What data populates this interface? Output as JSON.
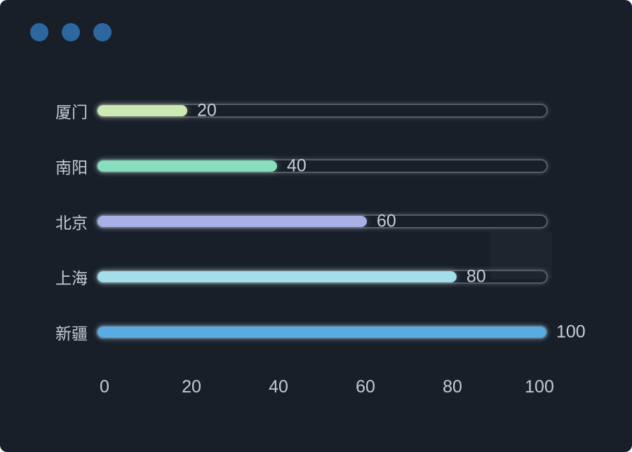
{
  "window": {
    "background": "#191f29",
    "dots_color": "#2d67a0",
    "dot_count": 3
  },
  "chart_data": {
    "type": "bar",
    "orientation": "horizontal",
    "title": "",
    "xlabel": "",
    "ylabel": "",
    "categories": [
      "厦门",
      "南阳",
      "北京",
      "上海",
      "新疆"
    ],
    "values": [
      20,
      40,
      60,
      80,
      100
    ],
    "value_labels": [
      "20",
      "40",
      "60",
      "80",
      "100"
    ],
    "bar_colors": [
      "#cdeab5",
      "#88dfbd",
      "#a9b0e6",
      "#a3dee9",
      "#58ace1"
    ],
    "xlim": [
      0,
      100
    ],
    "x_ticks": [
      0,
      20,
      40,
      60,
      80,
      100
    ],
    "grid": false,
    "legend": null,
    "track_border_color": "#565b64",
    "label_color": "#c7cad3",
    "tick_color": "#c6c9d2"
  }
}
